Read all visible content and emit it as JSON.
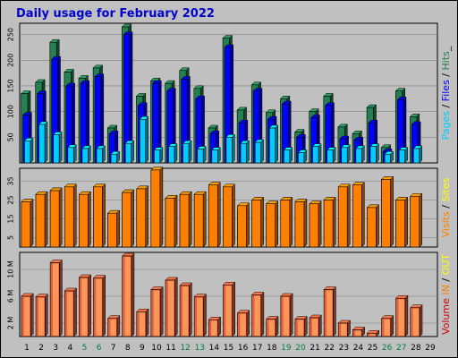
{
  "title": "Daily usage for February 2022",
  "colors": {
    "background": "#c0c0c0",
    "plot_background": "#c0c0c0",
    "grid": "#7f7f7f",
    "title": "#0000cc",
    "hits": "#238050",
    "files": "#0000ff",
    "pages": "#00ccff",
    "visits": "#ff8000",
    "sites": "#ffff00",
    "kbytes": "#e0603a",
    "kbytes_shade": "#ffa060",
    "weekend_day": "#008040",
    "weekday_day": "#000000"
  },
  "side_labels": {
    "top": [
      {
        "text": "Pages",
        "color": "#00ccff"
      },
      {
        "text": " / ",
        "color": "#000000"
      },
      {
        "text": "Files",
        "color": "#0000ff"
      },
      {
        "text": " / ",
        "color": "#000000"
      },
      {
        "text": "Hits",
        "color": "#238050"
      },
      {
        "text": "_",
        "color": "#000000"
      }
    ],
    "middle": [
      {
        "text": "Visits",
        "color": "#ff8000"
      },
      {
        "text": " / ",
        "color": "#000000"
      },
      {
        "text": "Sites",
        "color": "#ffff00"
      }
    ],
    "bottom": [
      {
        "text": "Volume",
        "color": "#cc0000"
      },
      {
        "text": "  ",
        "color": "#000000"
      },
      {
        "text": "IN",
        "color": "#ff8000"
      },
      {
        "text": " / ",
        "color": "#000000"
      },
      {
        "text": "OUT",
        "color": "#ffff00"
      }
    ]
  },
  "chart_data": [
    {
      "type": "bar",
      "panel": "hits-files-pages",
      "categories": [
        "1",
        "2",
        "3",
        "4",
        "5",
        "6",
        "7",
        "8",
        "9",
        "10",
        "11",
        "12",
        "13",
        "14",
        "15",
        "16",
        "17",
        "18",
        "19",
        "20",
        "21",
        "22",
        "23",
        "24",
        "25",
        "26",
        "27",
        "28",
        "29"
      ],
      "weekend_days": [
        "5",
        "6",
        "12",
        "13",
        "19",
        "20",
        "26",
        "27"
      ],
      "ylim": [
        0,
        265
      ],
      "y_ticks": [
        50,
        100,
        150,
        200,
        250
      ],
      "series": [
        {
          "name": "Hits",
          "values": [
            135,
            157,
            235,
            177,
            165,
            185,
            68,
            265,
            130,
            160,
            155,
            180,
            145,
            68,
            243,
            103,
            152,
            98,
            125,
            60,
            100,
            130,
            70,
            57,
            108,
            30,
            140,
            90,
            0
          ]
        },
        {
          "name": "Files",
          "values": [
            93,
            135,
            202,
            150,
            155,
            168,
            57,
            250,
            112,
            155,
            140,
            163,
            125,
            57,
            225,
            78,
            140,
            85,
            115,
            50,
            88,
            112,
            47,
            45,
            78,
            22,
            123,
            75,
            0
          ]
        },
        {
          "name": "Pages",
          "values": [
            43,
            75,
            55,
            30,
            28,
            28,
            17,
            38,
            85,
            25,
            32,
            38,
            27,
            25,
            50,
            38,
            40,
            68,
            25,
            20,
            32,
            25,
            30,
            28,
            32,
            17,
            25,
            28,
            0
          ]
        }
      ]
    },
    {
      "type": "bar",
      "panel": "visits-sites",
      "categories": [
        "1",
        "2",
        "3",
        "4",
        "5",
        "6",
        "7",
        "8",
        "9",
        "10",
        "11",
        "12",
        "13",
        "14",
        "15",
        "16",
        "17",
        "18",
        "19",
        "20",
        "21",
        "22",
        "23",
        "24",
        "25",
        "26",
        "27",
        "28",
        "29"
      ],
      "ylim": [
        0,
        40
      ],
      "y_ticks": [
        5,
        15,
        25,
        35
      ],
      "series": [
        {
          "name": "Visits",
          "values": [
            24,
            28,
            30,
            32,
            28,
            32,
            18,
            29,
            31,
            41,
            26,
            28,
            28,
            33,
            31,
            19,
            25,
            23,
            25,
            24,
            23,
            25,
            31,
            33,
            21,
            36,
            25,
            27,
            0
          ]
        },
        {
          "name": "Sites",
          "values": [
            24,
            28,
            30,
            32,
            28,
            32,
            18,
            29,
            31,
            41,
            26,
            28,
            28,
            33,
            32,
            22,
            25,
            23,
            25,
            24,
            23,
            25,
            32,
            33,
            21,
            36,
            25,
            27,
            0
          ]
        }
      ]
    },
    {
      "type": "bar",
      "panel": "volume",
      "categories": [
        "1",
        "2",
        "3",
        "4",
        "5",
        "6",
        "7",
        "8",
        "9",
        "10",
        "11",
        "12",
        "13",
        "14",
        "15",
        "16",
        "17",
        "18",
        "19",
        "20",
        "21",
        "22",
        "23",
        "24",
        "25",
        "26",
        "27",
        "28",
        "29"
      ],
      "ylim": [
        0,
        12
      ],
      "y_ticks": [
        2,
        6,
        10
      ],
      "y_tick_labels": [
        "2 M",
        "6 M",
        "10 M"
      ],
      "series": [
        {
          "name": "Volume",
          "values": [
            6.0,
            5.9,
            11.0,
            6.8,
            8.8,
            8.7,
            2.7,
            12.0,
            3.7,
            7.0,
            8.4,
            7.6,
            5.9,
            2.5,
            7.7,
            3.5,
            6.2,
            2.6,
            6.0,
            2.6,
            2.8,
            7.0,
            2.0,
            1.0,
            0.5,
            2.7,
            5.7,
            4.3,
            0
          ]
        }
      ]
    }
  ]
}
